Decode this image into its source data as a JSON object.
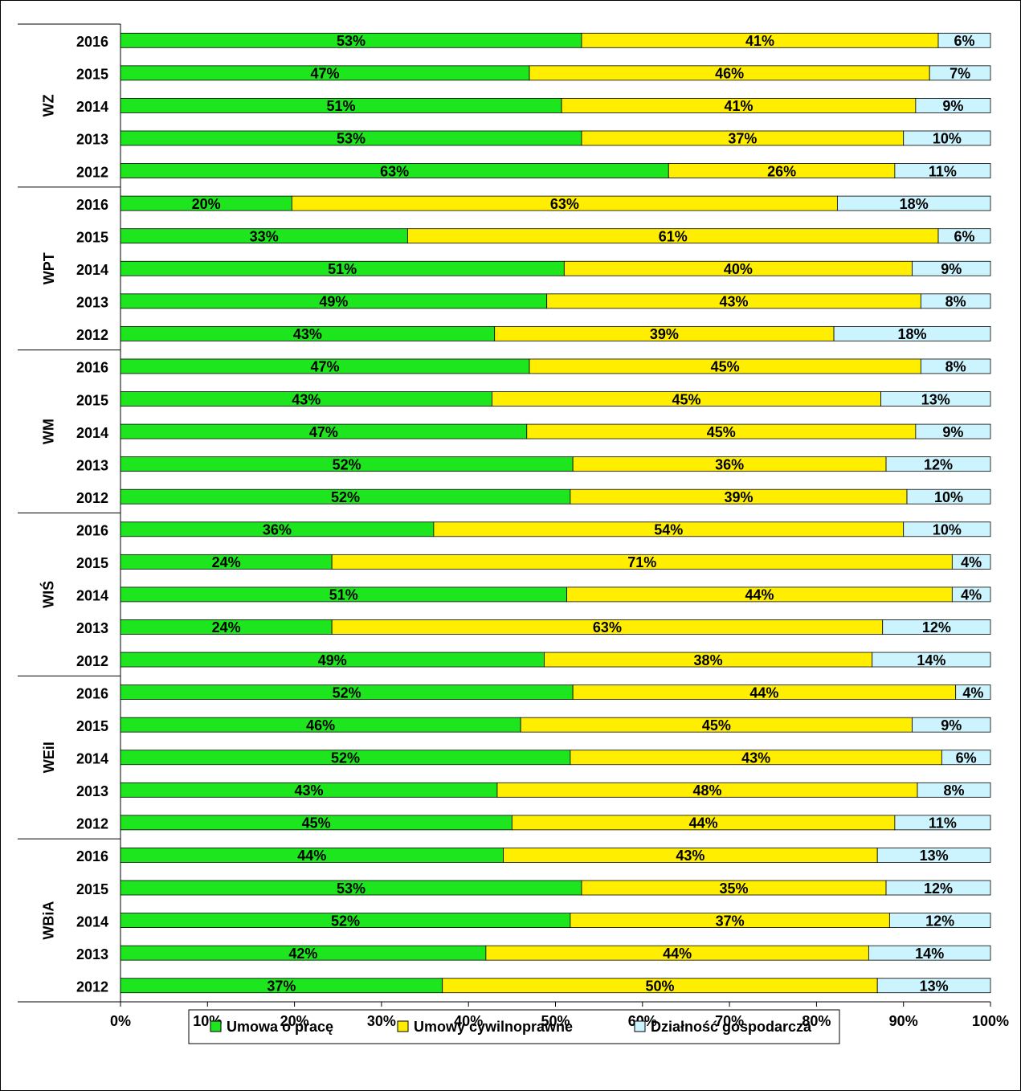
{
  "chart_data": {
    "type": "stacked-bar-horizontal",
    "categories": [
      "2016",
      "2015",
      "2014",
      "2013",
      "2012",
      "2016",
      "2015",
      "2014",
      "2013",
      "2012",
      "2016",
      "2015",
      "2014",
      "2013",
      "2012",
      "2016",
      "2015",
      "2014",
      "2013",
      "2012",
      "2016",
      "2015",
      "2014",
      "2013",
      "2012",
      "2016",
      "2015",
      "2014",
      "2013",
      "2012"
    ],
    "groups": [
      "WZ",
      "WPT",
      "WM",
      "WIŚ",
      "WEiI",
      "WBiA"
    ],
    "series": [
      {
        "name": "Umowa o pracę",
        "color": "#1ee61e",
        "values": [
          53,
          47,
          50.7,
          53,
          63,
          19.7,
          33,
          51,
          49,
          43,
          47,
          42.7,
          46.7,
          52,
          51.7,
          36,
          24.3,
          51.3,
          24.3,
          48.7,
          52,
          46,
          51.7,
          43.3,
          45,
          44,
          53,
          51.7,
          42,
          37
        ],
        "value_labels": [
          "53%",
          "47%",
          "51%",
          "53%",
          "63%",
          "20%",
          "33%",
          "51%",
          "49%",
          "43%",
          "47%",
          "43%",
          "47%",
          "52%",
          "52%",
          "36%",
          "24%",
          "51%",
          "24%",
          "49%",
          "52%",
          "46%",
          "52%",
          "43%",
          "45%",
          "44%",
          "53%",
          "52%",
          "42%",
          "37%"
        ]
      },
      {
        "name": "Umowy cywilnoprawne",
        "color": "#ffee00",
        "values": [
          41,
          46,
          40.7,
          37,
          26,
          62.7,
          61,
          40,
          43,
          39,
          45,
          44.7,
          44.7,
          36,
          38.7,
          54,
          71.3,
          44.3,
          63.3,
          37.7,
          44,
          45,
          42.7,
          48.3,
          44,
          43,
          35,
          36.7,
          44,
          50
        ],
        "value_labels": [
          "41%",
          "46%",
          "41%",
          "37%",
          "26%",
          "63%",
          "61%",
          "40%",
          "43%",
          "39%",
          "45%",
          "45%",
          "45%",
          "36%",
          "39%",
          "54%",
          "71%",
          "44%",
          "63%",
          "38%",
          "44%",
          "45%",
          "43%",
          "48%",
          "44%",
          "43%",
          "35%",
          "37%",
          "44%",
          "50%"
        ]
      },
      {
        "name": "Działność gospodarcza",
        "color": "#ccf4ff",
        "values": [
          6,
          7,
          8.6,
          10,
          11,
          17.6,
          6,
          9,
          8,
          18,
          8,
          12.6,
          8.6,
          12,
          9.6,
          10,
          4.4,
          4.4,
          12.4,
          13.6,
          4,
          9,
          5.6,
          8.4,
          11,
          13,
          12,
          11.6,
          14,
          13
        ],
        "value_labels": [
          "6%",
          "7%",
          "9%",
          "10%",
          "11%",
          "18%",
          "6%",
          "9%",
          "8%",
          "18%",
          "8%",
          "13%",
          "9%",
          "12%",
          "10%",
          "10%",
          "4%",
          "4%",
          "12%",
          "14%",
          "4%",
          "9%",
          "6%",
          "8%",
          "11%",
          "13%",
          "12%",
          "12%",
          "14%",
          "13%"
        ]
      }
    ],
    "xlim": [
      0,
      100
    ],
    "xticks": [
      {
        "value": 0,
        "label": "0%"
      },
      {
        "value": 10,
        "label": "10%"
      },
      {
        "value": 20,
        "label": "20%"
      },
      {
        "value": 30,
        "label": "30%"
      },
      {
        "value": 40,
        "label": "40%"
      },
      {
        "value": 50,
        "label": "50%"
      },
      {
        "value": 60,
        "label": "60%"
      },
      {
        "value": 70,
        "label": "70%"
      },
      {
        "value": 80,
        "label": "80%"
      },
      {
        "value": 90,
        "label": "90%"
      },
      {
        "value": 100,
        "label": "100%"
      }
    ],
    "legend": "bottom"
  }
}
